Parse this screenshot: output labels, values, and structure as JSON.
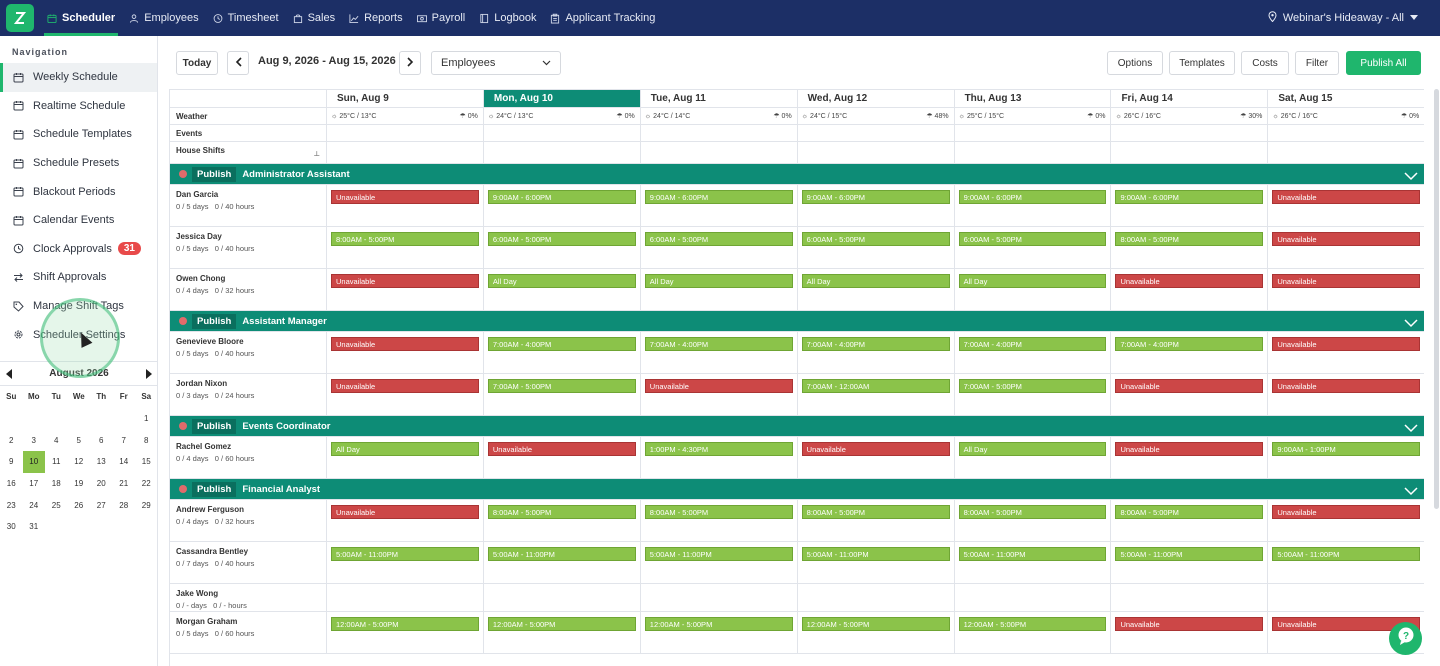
{
  "topnav": {
    "items": [
      {
        "label": "Scheduler",
        "icon": "calendar-icon",
        "active": true
      },
      {
        "label": "Employees",
        "icon": "people-icon"
      },
      {
        "label": "Timesheet",
        "icon": "clock-icon"
      },
      {
        "label": "Sales",
        "icon": "bag-icon"
      },
      {
        "label": "Reports",
        "icon": "chart-icon"
      },
      {
        "label": "Payroll",
        "icon": "money-icon"
      },
      {
        "label": "Logbook",
        "icon": "book-icon"
      },
      {
        "label": "Applicant Tracking",
        "icon": "clipboard-icon"
      }
    ],
    "location": "Webinar's Hideaway - All"
  },
  "sidebar": {
    "heading": "Navigation",
    "items": [
      {
        "label": "Weekly Schedule",
        "icon": "calendar-week-icon",
        "active": true
      },
      {
        "label": "Realtime Schedule",
        "icon": "calendar-list-icon"
      },
      {
        "label": "Schedule Templates",
        "icon": "calendar-grid-icon"
      },
      {
        "label": "Schedule Presets",
        "icon": "calendar-edit-icon"
      },
      {
        "label": "Blackout Periods",
        "icon": "calendar-x-icon"
      },
      {
        "label": "Calendar Events",
        "icon": "calendar-star-icon"
      },
      {
        "label": "Clock Approvals",
        "icon": "clock-icon",
        "badge": "31"
      },
      {
        "label": "Shift Approvals",
        "icon": "swap-icon"
      },
      {
        "label": "Manage Shift Tags",
        "icon": "tag-icon"
      },
      {
        "label": "Scheduler Settings",
        "icon": "gear-icon"
      }
    ]
  },
  "minical": {
    "month": "August 2026",
    "dows": [
      "Su",
      "Mo",
      "Tu",
      "We",
      "Th",
      "Fr",
      "Sa"
    ],
    "days": [
      "",
      "",
      "",
      "",
      "",
      "",
      "1",
      "2",
      "3",
      "4",
      "5",
      "6",
      "7",
      "8",
      "9",
      "10",
      "11",
      "12",
      "13",
      "14",
      "15",
      "16",
      "17",
      "18",
      "19",
      "20",
      "21",
      "22",
      "23",
      "24",
      "25",
      "26",
      "27",
      "28",
      "29",
      "30",
      "31"
    ],
    "selected": "10"
  },
  "toolbar": {
    "today": "Today",
    "date_range": "Aug 9, 2026 - Aug 15, 2026",
    "view_select": "Employees",
    "options": "Options",
    "templates": "Templates",
    "costs": "Costs",
    "filter": "Filter",
    "publish_all": "Publish All"
  },
  "days": [
    {
      "label": "Sun, Aug 9",
      "temp": "25°C / 13°C",
      "precip": "0%"
    },
    {
      "label": "Mon, Aug 10",
      "temp": "24°C / 13°C",
      "precip": "0%",
      "today": true
    },
    {
      "label": "Tue, Aug 11",
      "temp": "24°C / 14°C",
      "precip": "0%"
    },
    {
      "label": "Wed, Aug 12",
      "temp": "24°C / 15°C",
      "precip": "48%"
    },
    {
      "label": "Thu, Aug 13",
      "temp": "25°C / 15°C",
      "precip": "0%"
    },
    {
      "label": "Fri, Aug 14",
      "temp": "26°C / 16°C",
      "precip": "30%"
    },
    {
      "label": "Sat, Aug 15",
      "temp": "26°C / 16°C",
      "precip": "0%"
    }
  ],
  "info_rows": {
    "weather": "Weather",
    "events": "Events",
    "house_shifts": "House Shifts"
  },
  "publish_label": "Publish",
  "groups": [
    {
      "title": "Administrator Assistant",
      "employees": [
        {
          "name": "Dan Garcia",
          "days": "0 / 5 days",
          "hours": "0 / 40 hours",
          "shifts": [
            [
              "r",
              "Unavailable"
            ],
            [
              "g",
              "9:00AM - 6:00PM"
            ],
            [
              "g",
              "9:00AM - 6:00PM"
            ],
            [
              "g",
              "9:00AM - 6:00PM"
            ],
            [
              "g",
              "9:00AM - 6:00PM"
            ],
            [
              "g",
              "9:00AM - 6:00PM"
            ],
            [
              "r",
              "Unavailable"
            ]
          ]
        },
        {
          "name": "Jessica Day",
          "days": "0 / 5 days",
          "hours": "0 / 40 hours",
          "shifts": [
            [
              "g",
              "8:00AM - 5:00PM"
            ],
            [
              "g",
              "6:00AM - 5:00PM"
            ],
            [
              "g",
              "6:00AM - 5:00PM"
            ],
            [
              "g",
              "6:00AM - 5:00PM"
            ],
            [
              "g",
              "6:00AM - 5:00PM"
            ],
            [
              "g",
              "8:00AM - 5:00PM"
            ],
            [
              "r",
              "Unavailable"
            ]
          ]
        },
        {
          "name": "Owen Chong",
          "days": "0 / 4 days",
          "hours": "0 / 32 hours",
          "shifts": [
            [
              "r",
              "Unavailable"
            ],
            [
              "g",
              "All Day"
            ],
            [
              "g",
              "All Day"
            ],
            [
              "g",
              "All Day"
            ],
            [
              "g",
              "All Day"
            ],
            [
              "r",
              "Unavailable"
            ],
            [
              "r",
              "Unavailable"
            ]
          ]
        }
      ]
    },
    {
      "title": "Assistant Manager",
      "employees": [
        {
          "name": "Genevieve Bloore",
          "days": "0 / 5 days",
          "hours": "0 / 40 hours",
          "shifts": [
            [
              "r",
              "Unavailable"
            ],
            [
              "g",
              "7:00AM - 4:00PM"
            ],
            [
              "g",
              "7:00AM - 4:00PM"
            ],
            [
              "g",
              "7:00AM - 4:00PM"
            ],
            [
              "g",
              "7:00AM - 4:00PM"
            ],
            [
              "g",
              "7:00AM - 4:00PM"
            ],
            [
              "r",
              "Unavailable"
            ]
          ]
        },
        {
          "name": "Jordan Nixon",
          "days": "0 / 3 days",
          "hours": "0 / 24 hours",
          "shifts": [
            [
              "r",
              "Unavailable"
            ],
            [
              "g",
              "7:00AM - 5:00PM"
            ],
            [
              "r",
              "Unavailable"
            ],
            [
              "g",
              "7:00AM - 12:00AM"
            ],
            [
              "g",
              "7:00AM - 5:00PM"
            ],
            [
              "r",
              "Unavailable"
            ],
            [
              "r",
              "Unavailable"
            ]
          ]
        }
      ]
    },
    {
      "title": "Events Coordinator",
      "employees": [
        {
          "name": "Rachel Gomez",
          "days": "0 / 4 days",
          "hours": "0 / 60 hours",
          "shifts": [
            [
              "g",
              "All Day"
            ],
            [
              "r",
              "Unavailable"
            ],
            [
              "g",
              "1:00PM - 4:30PM"
            ],
            [
              "r",
              "Unavailable"
            ],
            [
              "g",
              "All Day"
            ],
            [
              "r",
              "Unavailable"
            ],
            [
              "g",
              "9:00AM - 1:00PM"
            ]
          ]
        }
      ]
    },
    {
      "title": "Financial Analyst",
      "employees": [
        {
          "name": "Andrew Ferguson",
          "days": "0 / 4 days",
          "hours": "0 / 32 hours",
          "shifts": [
            [
              "r",
              "Unavailable"
            ],
            [
              "g",
              "8:00AM - 5:00PM"
            ],
            [
              "g",
              "8:00AM - 5:00PM"
            ],
            [
              "g",
              "8:00AM - 5:00PM"
            ],
            [
              "g",
              "8:00AM - 5:00PM"
            ],
            [
              "g",
              "8:00AM - 5:00PM"
            ],
            [
              "r",
              "Unavailable"
            ]
          ]
        },
        {
          "name": "Cassandra Bentley",
          "days": "0 / 7 days",
          "hours": "0 / 40 hours",
          "shifts": [
            [
              "g",
              "5:00AM - 11:00PM"
            ],
            [
              "g",
              "5:00AM - 11:00PM"
            ],
            [
              "g",
              "5:00AM - 11:00PM"
            ],
            [
              "g",
              "5:00AM - 11:00PM"
            ],
            [
              "g",
              "5:00AM - 11:00PM"
            ],
            [
              "g",
              "5:00AM - 11:00PM"
            ],
            [
              "g",
              "5:00AM - 11:00PM"
            ]
          ]
        },
        {
          "name": "Jake Wong",
          "days": "0 / - days",
          "hours": "0 / - hours",
          "shifts": [
            [
              "",
              ""
            ],
            [
              "",
              ""
            ],
            [
              "",
              ""
            ],
            [
              "",
              ""
            ],
            [
              "",
              ""
            ],
            [
              "",
              ""
            ],
            [
              "",
              ""
            ]
          ]
        },
        {
          "name": "Morgan Graham",
          "days": "0 / 5 days",
          "hours": "0 / 60 hours",
          "shifts": [
            [
              "g",
              "12:00AM - 5:00PM"
            ],
            [
              "g",
              "12:00AM - 5:00PM"
            ],
            [
              "g",
              "12:00AM - 5:00PM"
            ],
            [
              "g",
              "12:00AM - 5:00PM"
            ],
            [
              "g",
              "12:00AM - 5:00PM"
            ],
            [
              "r",
              "Unavailable"
            ],
            [
              "r",
              "Unavailable"
            ]
          ]
        }
      ]
    }
  ]
}
